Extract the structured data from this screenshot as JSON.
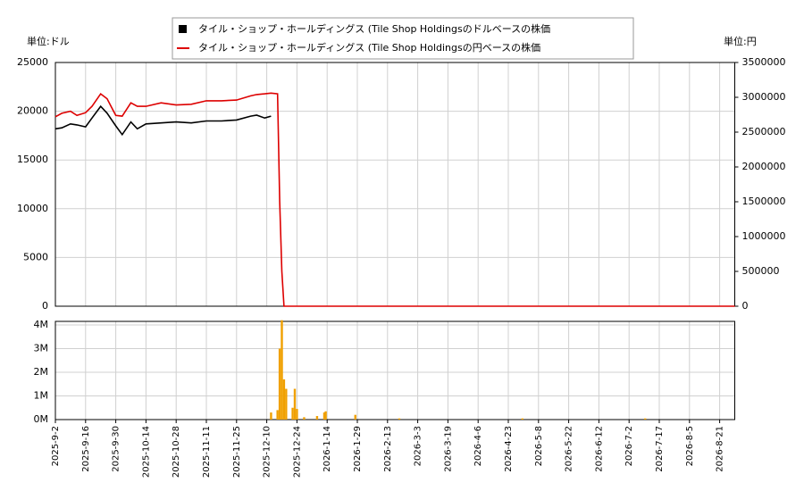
{
  "chart_data": [
    {
      "type": "line",
      "annotations": [
        "単位:ドル",
        "単位:円"
      ],
      "ylim": [
        0,
        25000
      ],
      "yticks": [
        0,
        5000,
        10000,
        15000,
        20000,
        25000
      ],
      "y2lim": [
        0,
        3500000
      ],
      "y2ticks": [
        0,
        500000,
        1000000,
        1500000,
        2000000,
        2500000,
        3000000,
        3500000
      ],
      "grid": true,
      "legend": "top",
      "series": [
        {
          "name": "タイル・ショップ・ホールディングス (Tile Shop Holdingsのドルベースの株価",
          "color": "#000000",
          "x": [
            "2025-9-2",
            "2025-9-5",
            "2025-9-9",
            "2025-9-12",
            "2025-9-16",
            "2025-9-19",
            "2025-9-23",
            "2025-9-26",
            "2025-9-30",
            "2025-10-3",
            "2025-10-7",
            "2025-10-10",
            "2025-10-14",
            "2025-10-21",
            "2025-10-28",
            "2025-11-4",
            "2025-11-11",
            "2025-11-18",
            "2025-11-25",
            "2025-12-2",
            "2025-12-5",
            "2025-12-9",
            "2025-12-12"
          ],
          "values": [
            18200,
            18300,
            18700,
            18600,
            18400,
            19300,
            20500,
            19800,
            18500,
            17600,
            18900,
            18200,
            18700,
            18800,
            18900,
            18800,
            19000,
            19000,
            19100,
            19500,
            19600,
            19300,
            19500
          ]
        },
        {
          "name": "タイル・ショップ・ホールディングス (Tile Shop Holdingsの円ベースの株価",
          "color": "#dd0000",
          "axis": "y2",
          "x": [
            "2025-9-2",
            "2025-9-5",
            "2025-9-9",
            "2025-9-12",
            "2025-9-16",
            "2025-9-19",
            "2025-9-23",
            "2025-9-26",
            "2025-9-30",
            "2025-10-3",
            "2025-10-7",
            "2025-10-10",
            "2025-10-14",
            "2025-10-21",
            "2025-10-28",
            "2025-11-4",
            "2025-11-11",
            "2025-11-18",
            "2025-11-25",
            "2025-12-2",
            "2025-12-5",
            "2025-12-9",
            "2025-12-12",
            "2025-12-15",
            "2025-12-16",
            "2025-12-17",
            "2025-12-18",
            "2026-1-14",
            "2026-4-6",
            "2026-8-29"
          ],
          "values": [
            2720000,
            2770000,
            2800000,
            2740000,
            2780000,
            2870000,
            3050000,
            2980000,
            2740000,
            2730000,
            2920000,
            2870000,
            2870000,
            2920000,
            2890000,
            2900000,
            2950000,
            2950000,
            2960000,
            3020000,
            3040000,
            3050000,
            3060000,
            3050000,
            1500000,
            500000,
            0,
            0,
            0,
            0
          ]
        }
      ]
    },
    {
      "type": "bar",
      "xlim": [
        "2025-9-2",
        "2026-8-29"
      ],
      "xticks": [
        "2025-9-2",
        "2025-9-16",
        "2025-9-30",
        "2025-10-14",
        "2025-10-28",
        "2025-11-11",
        "2025-11-25",
        "2025-12-10",
        "2025-12-24",
        "2026-1-14",
        "2026-1-29",
        "2026-2-13",
        "2026-3-3",
        "2026-3-19",
        "2026-4-6",
        "2026-4-23",
        "2026-5-8",
        "2026-5-22",
        "2026-6-12",
        "2026-7-2",
        "2026-7-17",
        "2026-8-5",
        "2026-8-21"
      ],
      "ylim": [
        0,
        4150000
      ],
      "yticks": [
        {
          "value": 0,
          "label": "0M"
        },
        {
          "value": 1000000,
          "label": "1M"
        },
        {
          "value": 2000000,
          "label": "2M"
        },
        {
          "value": 3000000,
          "label": "3M"
        },
        {
          "value": 4000000,
          "label": "4M"
        }
      ],
      "grid": true,
      "color": "#f0a000",
      "x": [
        "2025-12-12",
        "2025-12-15",
        "2025-12-16",
        "2025-12-17",
        "2025-12-18",
        "2025-12-19",
        "2025-12-22",
        "2025-12-23",
        "2025-12-24",
        "2025-12-29",
        "2026-1-7",
        "2026-1-12",
        "2026-1-13",
        "2026-1-28",
        "2026-2-20",
        "2026-4-30",
        "2026-7-10"
      ],
      "values": [
        300000,
        400000,
        3000000,
        4200000,
        1700000,
        1300000,
        500000,
        1300000,
        450000,
        100000,
        150000,
        300000,
        350000,
        200000,
        50000,
        50000,
        50000
      ]
    }
  ]
}
